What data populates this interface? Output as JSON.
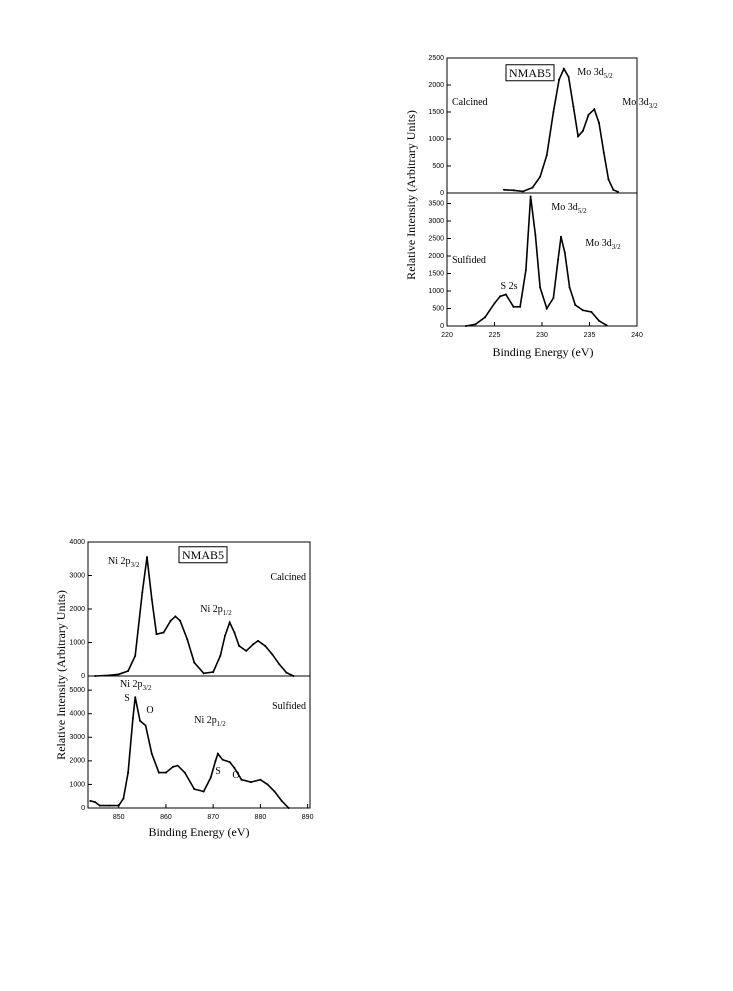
{
  "chart_data": [
    {
      "type": "line",
      "title": "NMAB5",
      "xlim": [
        220,
        240
      ],
      "ylim": [
        0,
        2500
      ],
      "yticks": [
        0,
        500,
        1000,
        1500,
        2000,
        2500
      ],
      "annotations": [
        {
          "text": "Calcined"
        },
        {
          "text": "Mo 3d",
          "sub": "5/2"
        },
        {
          "text": "Mo 3d",
          "sub": "3/2"
        }
      ],
      "series": [
        {
          "color": "#000000",
          "x": [
            226,
            227,
            228,
            229,
            229.8,
            230.5,
            231.2,
            231.8,
            232.3,
            232.8,
            233.3,
            233.8,
            234.3,
            234.9,
            235.5,
            236,
            236.5,
            237,
            237.5,
            238
          ],
          "values": [
            60,
            50,
            30,
            100,
            300,
            700,
            1500,
            2100,
            2300,
            2150,
            1600,
            1050,
            1150,
            1450,
            1550,
            1300,
            750,
            250,
            60,
            20
          ]
        }
      ]
    },
    {
      "type": "line",
      "xlabel": "Binding Energy (eV)",
      "ylabel": "Relative Intensity (Arbitrary Units)",
      "xlim": [
        220,
        240
      ],
      "xticks": [
        220,
        225,
        230,
        235,
        240
      ],
      "ylim": [
        0,
        3800
      ],
      "yticks": [
        0,
        500,
        1000,
        1500,
        2000,
        2500,
        3000,
        3500
      ],
      "annotations": [
        {
          "text": "Sulfided"
        },
        {
          "text": "Mo 3d",
          "sub": "5/2"
        },
        {
          "text": "Mo 3d",
          "sub": "3/2"
        },
        {
          "text": "S 2s"
        }
      ],
      "series": [
        {
          "color": "#000000",
          "x": [
            222,
            223,
            224,
            225,
            225.6,
            226.2,
            227,
            227.7,
            228.3,
            228.8,
            229.3,
            229.8,
            230.5,
            231.2,
            231.7,
            232,
            232.4,
            232.9,
            233.5,
            234.3,
            235.2,
            236,
            236.8
          ],
          "values": [
            0,
            50,
            250,
            650,
            850,
            900,
            550,
            550,
            1600,
            3700,
            2600,
            1100,
            500,
            800,
            1900,
            2550,
            2100,
            1100,
            600,
            450,
            400,
            150,
            20
          ]
        }
      ]
    },
    {
      "type": "line",
      "title": "NMAB5",
      "xlim": [
        843.5,
        890.5
      ],
      "ylim": [
        0,
        4000
      ],
      "yticks": [
        0,
        1000,
        2000,
        3000,
        4000
      ],
      "annotations": [
        {
          "text": "Ni 2p",
          "sub": "3/2"
        },
        {
          "text": "Calcined"
        },
        {
          "text": "Ni 2p",
          "sub": "1/2"
        }
      ],
      "series": [
        {
          "color": "#000000",
          "x": [
            845,
            848,
            850,
            852,
            853.5,
            855,
            856,
            857,
            858,
            859.5,
            861,
            862,
            863,
            864.5,
            866,
            868,
            870,
            871.5,
            872.5,
            873.5,
            874.5,
            875.5,
            877,
            878.5,
            879.5,
            881,
            882.5,
            884,
            885.5,
            887
          ],
          "values": [
            0,
            20,
            50,
            150,
            600,
            2500,
            3550,
            2300,
            1250,
            1300,
            1650,
            1780,
            1650,
            1100,
            400,
            80,
            120,
            600,
            1200,
            1600,
            1300,
            900,
            750,
            950,
            1050,
            900,
            650,
            350,
            100,
            0
          ]
        }
      ]
    },
    {
      "type": "line",
      "xlabel": "Binding Energy (eV)",
      "ylabel": "Relative Intensity (Arbitrary Units)",
      "xlim": [
        843.5,
        890.5
      ],
      "xticks": [
        850,
        860,
        870,
        880,
        890
      ],
      "ylim": [
        0,
        5600
      ],
      "yticks": [
        0,
        1000,
        2000,
        3000,
        4000,
        5000
      ],
      "annotations": [
        {
          "text": "Ni 2p",
          "sub": "3/2"
        },
        {
          "text": "S"
        },
        {
          "text": "O"
        },
        {
          "text": "Ni 2p",
          "sub": "1/2"
        },
        {
          "text": "Sulfided"
        },
        {
          "text": "S"
        },
        {
          "text": "O"
        }
      ],
      "series": [
        {
          "color": "#000000",
          "x": [
            844,
            845,
            846,
            848,
            850,
            851,
            852,
            853,
            853.5,
            854.5,
            855.7,
            857,
            858.5,
            860,
            861.5,
            862.5,
            864,
            866,
            868,
            869.5,
            870.5,
            871,
            872,
            873.5,
            874.5,
            876,
            878,
            880,
            881.5,
            883,
            884.5,
            886
          ],
          "values": [
            300,
            250,
            100,
            100,
            100,
            400,
            1500,
            3800,
            4700,
            3700,
            3500,
            2300,
            1500,
            1500,
            1750,
            1800,
            1500,
            800,
            700,
            1300,
            2000,
            2300,
            2050,
            1950,
            1700,
            1200,
            1100,
            1200,
            1000,
            700,
            300,
            0
          ]
        }
      ]
    }
  ]
}
